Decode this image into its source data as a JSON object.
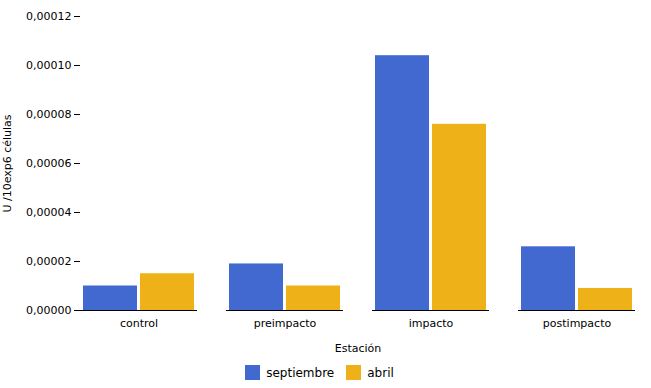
{
  "chart_data": {
    "type": "bar",
    "categories": [
      "control",
      "preimpacto",
      "impacto",
      "postimpacto"
    ],
    "series": [
      {
        "name": "septiembre",
        "values": [
          1e-05,
          1.9e-05,
          0.000104,
          2.6e-05
        ]
      },
      {
        "name": "abril",
        "values": [
          1.5e-05,
          1e-05,
          7.6e-05,
          9e-06
        ]
      }
    ],
    "xlabel": "Estación",
    "ylabel": "U /10exp6 células",
    "ylim": [
      0,
      0.00012
    ],
    "yticks": [
      {
        "value": 0.0,
        "label": "0,00000"
      },
      {
        "value": 2e-05,
        "label": "0,00002"
      },
      {
        "value": 4e-05,
        "label": "0,00004"
      },
      {
        "value": 6e-05,
        "label": "0,00006"
      },
      {
        "value": 8e-05,
        "label": "0,00008"
      },
      {
        "value": 0.0001,
        "label": "0,00010"
      },
      {
        "value": 0.00012,
        "label": "0,00012"
      }
    ],
    "grid": false,
    "legend": "bottom"
  }
}
